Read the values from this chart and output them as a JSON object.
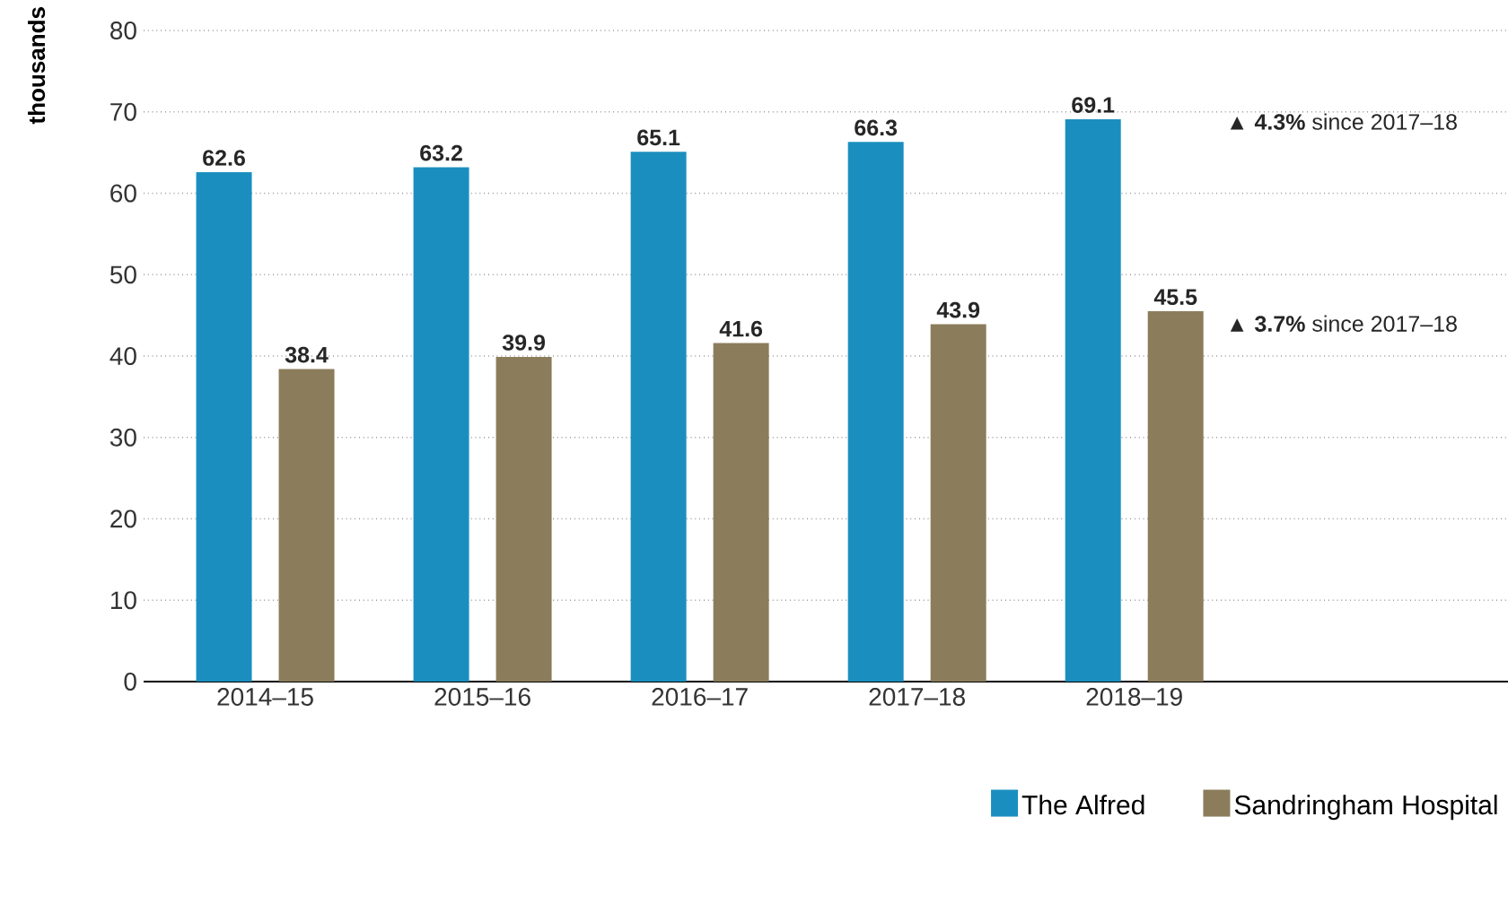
{
  "chart_data": {
    "type": "bar",
    "ylabel": "thousands",
    "categories": [
      "2014–15",
      "2015–16",
      "2016–17",
      "2017–18",
      "2018–19"
    ],
    "series": [
      {
        "name": "The Alfred",
        "color": "#1a8fbf",
        "values": [
          62.6,
          63.2,
          65.1,
          66.3,
          69.1
        ]
      },
      {
        "name": "Sandringham Hospital",
        "color": "#8b7d5b",
        "values": [
          38.4,
          39.9,
          41.6,
          43.9,
          45.5
        ]
      }
    ],
    "ylim": [
      0,
      80
    ],
    "yticks": [
      0,
      10,
      20,
      30,
      40,
      50,
      60,
      70,
      80
    ],
    "grid": "y",
    "legend": "bottom right",
    "data_labels": true,
    "annotations": [
      "▲ **4.3%** since 2017–18",
      "▲ **3.7%** since 2017–18"
    ]
  }
}
